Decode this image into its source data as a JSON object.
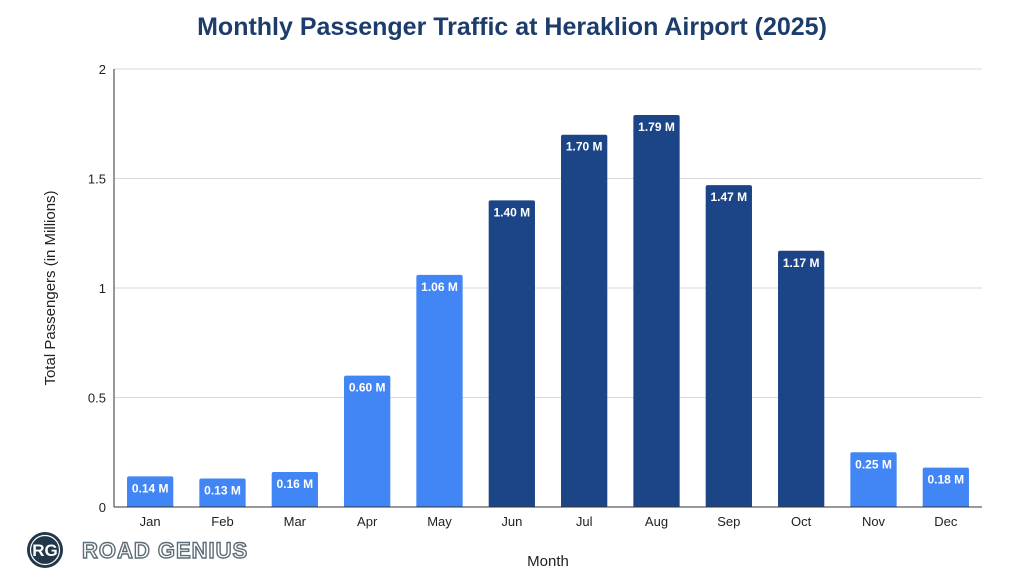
{
  "chart_data": {
    "type": "bar",
    "title": "Monthly Passenger Traffic at Heraklion Airport (2025)",
    "xlabel": "Month",
    "ylabel": "Total Passengers (in Millions)",
    "ylim": [
      0,
      2
    ],
    "yticks": [
      0,
      0.5,
      1,
      1.5,
      2
    ],
    "ytick_labels": [
      "0",
      "0.5",
      "1",
      "1.5",
      "2"
    ],
    "grid": true,
    "categories": [
      "Jan",
      "Feb",
      "Mar",
      "Apr",
      "May",
      "Jun",
      "Jul",
      "Aug",
      "Sep",
      "Oct",
      "Nov",
      "Dec"
    ],
    "values": [
      0.14,
      0.13,
      0.16,
      0.6,
      1.06,
      1.4,
      1.7,
      1.79,
      1.47,
      1.17,
      0.25,
      0.18
    ],
    "data_labels": [
      "0.14 M",
      "0.13 M",
      "0.16 M",
      "0.60 M",
      "1.06 M",
      "1.40 M",
      "1.70 M",
      "1.79 M",
      "1.47 M",
      "1.17 M",
      "0.25 M",
      "0.18 M"
    ],
    "bar_color_groups": [
      "light",
      "light",
      "light",
      "light",
      "light",
      "dark",
      "dark",
      "dark",
      "dark",
      "dark",
      "light",
      "light"
    ]
  },
  "colors": {
    "light_bar": "#4285f4",
    "dark_bar": "#1c4587",
    "title": "#1c3d6b",
    "gridline": "#d9d9d9",
    "axis": "#333333",
    "logo_circle": "#22384a",
    "logo_text_stroke": "#5d6d78"
  },
  "brand": {
    "logo_initials": "RG",
    "logo_text": "ROAD GENIUS"
  }
}
